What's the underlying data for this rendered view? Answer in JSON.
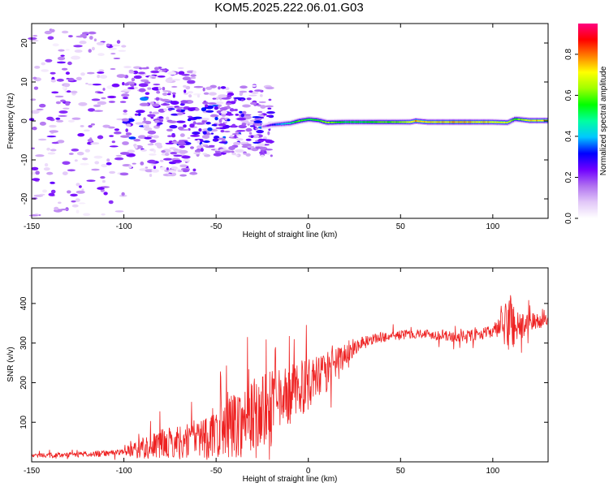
{
  "title": "KOM5.2025.222.06.01.G03",
  "chart_data": [
    {
      "type": "heatmap",
      "name": "spectrogram",
      "xlabel": "Height of straight line (km)",
      "ylabel": "Frequency (Hz)",
      "xlim": [
        -150,
        130
      ],
      "ylim": [
        -25,
        25
      ],
      "xticks": [
        -150,
        -100,
        -50,
        0,
        50,
        100
      ],
      "yticks": [
        -20,
        -10,
        0,
        10,
        20
      ],
      "xtick_labels": [
        "-150",
        "-100",
        "-50",
        "0",
        "50",
        "100"
      ],
      "ytick_labels": [
        "-20",
        "-10",
        "0",
        "10",
        "20"
      ],
      "colorbar": {
        "label": "Normalized spectral amplitude",
        "range": [
          0,
          0.95
        ],
        "ticks": [
          0.0,
          0.2,
          0.4,
          0.6,
          0.8
        ],
        "tick_labels": [
          "0.0",
          "0.2",
          "0.4",
          "0.6",
          "0.8"
        ],
        "colormap": [
          "#ffffff",
          "#e2c8f8",
          "#b070f0",
          "#7000ff",
          "#0000ff",
          "#00c8ff",
          "#00ffa0",
          "#00ff00",
          "#a0ff00",
          "#ffff00",
          "#ff8000",
          "#ff0000",
          "#ff0080"
        ]
      },
      "features": {
        "noise_region_x": [
          -150,
          -20
        ],
        "noise_level": [
          0.02,
          0.25
        ],
        "main_trace": {
          "x": [
            -25,
            -20,
            -10,
            -5,
            0,
            5,
            10,
            20,
            30,
            40,
            50,
            55,
            58,
            65,
            80,
            100,
            108,
            112,
            120,
            130
          ],
          "frequency": [
            -1.5,
            -1.0,
            -0.6,
            0.0,
            0.4,
            0.2,
            -0.4,
            -0.3,
            -0.3,
            -0.3,
            -0.3,
            -0.3,
            0.0,
            -0.3,
            -0.3,
            -0.3,
            -0.4,
            0.5,
            0.1,
            0.1
          ],
          "amplitude": [
            0.15,
            0.3,
            0.5,
            0.6,
            0.55,
            0.55,
            0.65,
            0.55,
            0.55,
            0.6,
            0.65,
            0.75,
            0.8,
            0.75,
            0.8,
            0.75,
            0.7,
            0.6,
            0.75,
            0.8
          ]
        }
      }
    },
    {
      "type": "line",
      "name": "snr",
      "xlabel": "Height of straight line (km)",
      "ylabel": "SNR (v/v)",
      "xlim": [
        -150,
        130
      ],
      "ylim": [
        0,
        490
      ],
      "xticks": [
        -150,
        -100,
        -50,
        0,
        50,
        100
      ],
      "yticks": [
        100,
        200,
        300,
        400
      ],
      "xtick_labels": [
        "-150",
        "-100",
        "-50",
        "0",
        "50",
        "100"
      ],
      "ytick_labels": [
        "100",
        "200",
        "300",
        "400"
      ],
      "color": "#ee2222",
      "trend": {
        "x": [
          -150,
          -130,
          -110,
          -100,
          -90,
          -80,
          -70,
          -60,
          -50,
          -40,
          -30,
          -25,
          -20,
          -10,
          0,
          10,
          20,
          25,
          30,
          40,
          50,
          60,
          70,
          80,
          90,
          100,
          105,
          110,
          115,
          120,
          130
        ],
        "y": [
          15,
          18,
          22,
          25,
          35,
          45,
          50,
          60,
          75,
          95,
          110,
          120,
          135,
          170,
          195,
          225,
          270,
          290,
          305,
          315,
          320,
          325,
          320,
          315,
          320,
          330,
          340,
          355,
          340,
          350,
          360
        ]
      },
      "noise_amplitude": {
        "x": [
          -150,
          -100,
          -90,
          -60,
          -40,
          -25,
          -15,
          0,
          10,
          20,
          30,
          60,
          100,
          105,
          110,
          115,
          130
        ],
        "amp": [
          6,
          8,
          30,
          50,
          85,
          110,
          80,
          65,
          50,
          30,
          14,
          12,
          15,
          40,
          90,
          35,
          12
        ]
      }
    }
  ]
}
